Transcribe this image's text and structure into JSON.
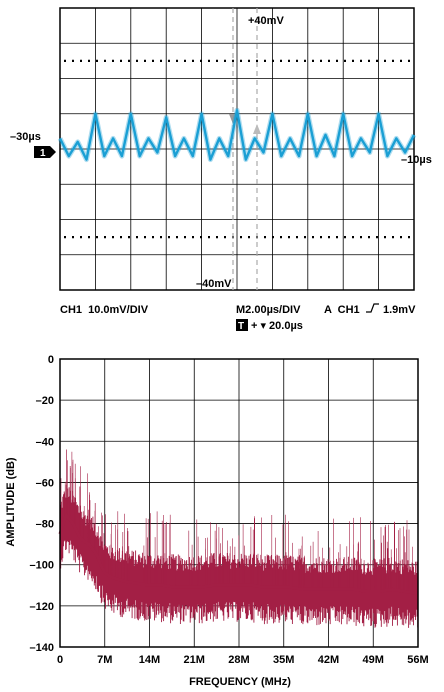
{
  "chart_data": [
    {
      "type": "line",
      "series": [
        {
          "color": "#1a9fd4",
          "x": [
            -30,
            -29.5,
            -29,
            -28.5,
            -28,
            -27.5,
            -27,
            -26.5,
            -26,
            -25.5,
            -25,
            -24.5,
            -24,
            -23.5,
            -23,
            -22.5,
            -22,
            -21.5,
            -21,
            -20.5,
            -20,
            -19.5,
            -19,
            -18.5,
            -18,
            -17.5,
            -17,
            -16.5,
            -16,
            -15.5,
            -15,
            -14.5,
            -14,
            -13.5,
            -13,
            -12.5,
            -12,
            -11.5,
            -11,
            -10.5,
            -10
          ],
          "values": [
            3,
            -2,
            2,
            -3,
            10,
            -2,
            3,
            -2,
            10,
            -2,
            3,
            -1,
            9,
            -2,
            3,
            -2,
            10,
            -3,
            3,
            -2,
            11,
            -3,
            3,
            -1,
            10,
            -2,
            3,
            -2,
            10,
            -2,
            4,
            -2,
            10,
            -2,
            3,
            -1,
            10,
            -2,
            3,
            -1,
            4
          ]
        }
      ],
      "annotations": {
        "top_marker": "+40mV",
        "bottom_marker": "–40mV",
        "left_marker": "–30µs",
        "right_marker": "–10µs",
        "channel_marker": "1",
        "trigger_marker": "T"
      },
      "readouts": {
        "channel_scale": "CH1  10.0mV/DIV",
        "timebase": "M2.00µs/DIV",
        "trigger": "A  CH1",
        "trigger_level": "1.9mV",
        "trigger_position": "+ ▾ 20.0µs"
      }
    },
    {
      "type": "line",
      "xlabel": "FREQUENCY (MHz)",
      "ylabel": "AMPLITUDE (dB)",
      "xlim": [
        0,
        56
      ],
      "ylim": [
        -140,
        0
      ],
      "x_tick_labels": [
        "0",
        "7M",
        "14M",
        "21M",
        "28M",
        "35M",
        "42M",
        "49M",
        "56M"
      ],
      "y_tick_labels": [
        "0",
        "–20",
        "–40",
        "–60",
        "–80",
        "–100",
        "–120",
        "–140"
      ],
      "grid": true,
      "series": [
        {
          "color": "#a31f45",
          "x": [
            0,
            0.5,
            1,
            1.5,
            2,
            2.5,
            3,
            3.5,
            4,
            4.5,
            5,
            5.5,
            6,
            6.5,
            7,
            8,
            10,
            12,
            14,
            16,
            18,
            20,
            22,
            24,
            26,
            28,
            30,
            32,
            34,
            36,
            38,
            40,
            42,
            44,
            46,
            48,
            50,
            52,
            54,
            56
          ],
          "values": [
            -85,
            -80,
            -76,
            -78,
            -80,
            -83,
            -86,
            -88,
            -89,
            -90,
            -92,
            -94,
            -97,
            -101,
            -104,
            -106,
            -108,
            -109,
            -110,
            -110,
            -111,
            -111,
            -111,
            -110,
            -110,
            -110,
            -110,
            -111,
            -111,
            -111,
            -112,
            -112,
            -112,
            -112,
            -112,
            -113,
            -113,
            -112,
            -113,
            -114
          ]
        }
      ]
    }
  ]
}
